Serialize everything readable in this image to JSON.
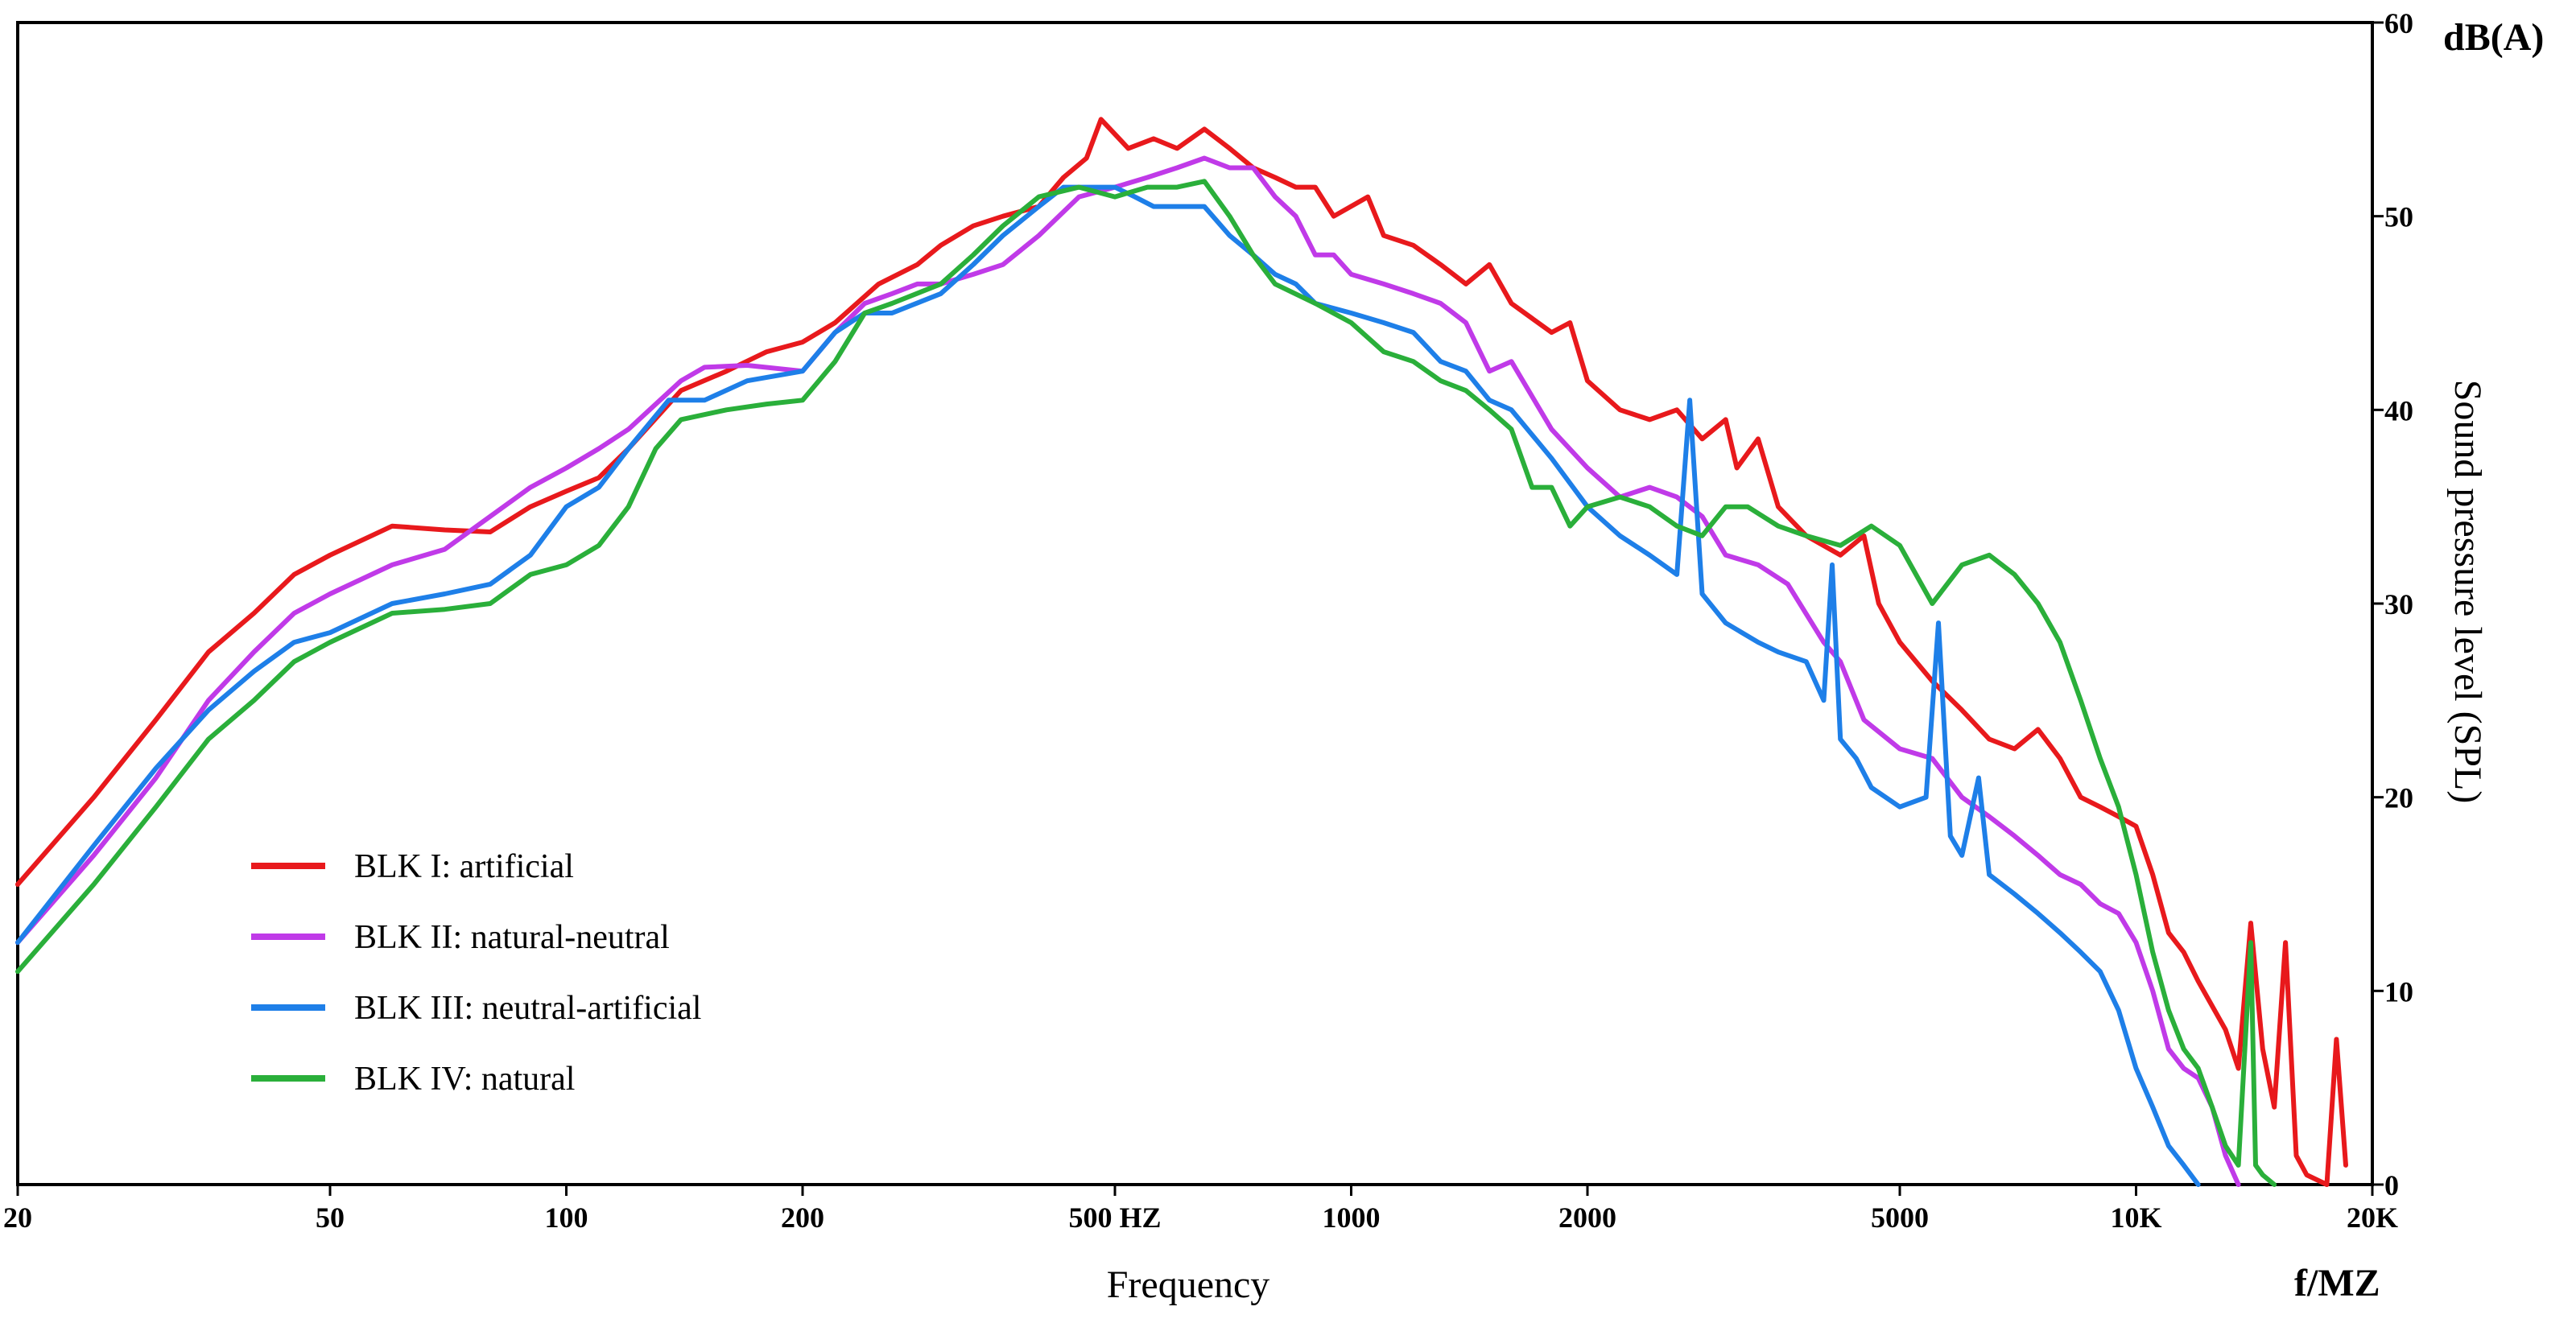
{
  "chart_data": {
    "type": "line",
    "title": "",
    "xlabel": "Frequency",
    "x_unit": "f/MZ",
    "ylabel": "Sound pressure level (SPL)",
    "y_unit": "dB(A)",
    "x_scale": "log",
    "xlim": [
      20,
      20000
    ],
    "ylim": [
      0,
      60
    ],
    "x_ticks": [
      20,
      50,
      100,
      200,
      500,
      1000,
      2000,
      5000,
      10000,
      20000
    ],
    "x_tick_labels": [
      "20",
      "50",
      "100",
      "200",
      "500 HZ",
      "1000",
      "2000",
      "5000",
      "10K",
      "20K"
    ],
    "y_ticks": [
      0,
      10,
      20,
      30,
      40,
      50,
      60
    ],
    "y_tick_labels": [
      "0",
      "10",
      "20",
      "30",
      "40",
      "50",
      "60"
    ],
    "legend_position": "lower-left",
    "series": [
      {
        "name": "BLK I: artificial",
        "color": "#e8191c",
        "points": [
          [
            20,
            15.5
          ],
          [
            25,
            20
          ],
          [
            30,
            24
          ],
          [
            35,
            27.5
          ],
          [
            40,
            29.5
          ],
          [
            45,
            31.5
          ],
          [
            50,
            32.5
          ],
          [
            60,
            34
          ],
          [
            70,
            33.8
          ],
          [
            80,
            33.7
          ],
          [
            90,
            35
          ],
          [
            100,
            35.8
          ],
          [
            110,
            36.5
          ],
          [
            120,
            38
          ],
          [
            140,
            41
          ],
          [
            160,
            42
          ],
          [
            180,
            43
          ],
          [
            200,
            43.5
          ],
          [
            220,
            44.5
          ],
          [
            250,
            46.5
          ],
          [
            280,
            47.5
          ],
          [
            300,
            48.5
          ],
          [
            330,
            49.5
          ],
          [
            360,
            50
          ],
          [
            400,
            50.5
          ],
          [
            430,
            52
          ],
          [
            460,
            53
          ],
          [
            480,
            55
          ],
          [
            520,
            53.5
          ],
          [
            560,
            54
          ],
          [
            600,
            53.5
          ],
          [
            650,
            54.5
          ],
          [
            700,
            53.5
          ],
          [
            750,
            52.5
          ],
          [
            800,
            52
          ],
          [
            850,
            51.5
          ],
          [
            900,
            51.5
          ],
          [
            950,
            50
          ],
          [
            1050,
            51
          ],
          [
            1100,
            49
          ],
          [
            1200,
            48.5
          ],
          [
            1300,
            47.5
          ],
          [
            1400,
            46.5
          ],
          [
            1500,
            47.5
          ],
          [
            1600,
            45.5
          ],
          [
            1800,
            44
          ],
          [
            1900,
            44.5
          ],
          [
            2000,
            41.5
          ],
          [
            2200,
            40
          ],
          [
            2400,
            39.5
          ],
          [
            2600,
            40
          ],
          [
            2800,
            38.5
          ],
          [
            3000,
            39.5
          ],
          [
            3100,
            37
          ],
          [
            3300,
            38.5
          ],
          [
            3500,
            35
          ],
          [
            3800,
            33.5
          ],
          [
            4200,
            32.5
          ],
          [
            4500,
            33.5
          ],
          [
            4700,
            30
          ],
          [
            5000,
            28
          ],
          [
            5500,
            26
          ],
          [
            6000,
            24.5
          ],
          [
            6500,
            23
          ],
          [
            7000,
            22.5
          ],
          [
            7500,
            23.5
          ],
          [
            8000,
            22
          ],
          [
            8500,
            20
          ],
          [
            9000,
            19.5
          ],
          [
            9500,
            19
          ],
          [
            10000,
            18.5
          ],
          [
            10500,
            16
          ],
          [
            11000,
            13
          ],
          [
            11500,
            12
          ],
          [
            12000,
            10.5
          ],
          [
            13000,
            8
          ],
          [
            13500,
            6
          ],
          [
            14000,
            13.5
          ],
          [
            14500,
            7
          ],
          [
            15000,
            4
          ],
          [
            15500,
            12.5
          ],
          [
            16000,
            1.5
          ],
          [
            16500,
            0.5
          ],
          [
            17500,
            0
          ],
          [
            18000,
            7.5
          ],
          [
            18500,
            1
          ]
        ]
      },
      {
        "name": "BLK II: natural-neutral",
        "color": "#c03ae8",
        "points": [
          [
            20,
            12.5
          ],
          [
            25,
            17
          ],
          [
            30,
            21
          ],
          [
            35,
            25
          ],
          [
            40,
            27.5
          ],
          [
            45,
            29.5
          ],
          [
            50,
            30.5
          ],
          [
            60,
            32
          ],
          [
            70,
            32.8
          ],
          [
            80,
            34.5
          ],
          [
            90,
            36
          ],
          [
            100,
            37
          ],
          [
            110,
            38
          ],
          [
            120,
            39
          ],
          [
            140,
            41.5
          ],
          [
            150,
            42.2
          ],
          [
            170,
            42.3
          ],
          [
            200,
            42
          ],
          [
            220,
            44
          ],
          [
            240,
            45.5
          ],
          [
            260,
            46
          ],
          [
            280,
            46.5
          ],
          [
            300,
            46.5
          ],
          [
            330,
            47
          ],
          [
            360,
            47.5
          ],
          [
            400,
            49
          ],
          [
            450,
            51
          ],
          [
            500,
            51.5
          ],
          [
            550,
            52
          ],
          [
            600,
            52.5
          ],
          [
            650,
            53
          ],
          [
            700,
            52.5
          ],
          [
            750,
            52.5
          ],
          [
            800,
            51
          ],
          [
            850,
            50
          ],
          [
            900,
            48
          ],
          [
            950,
            48
          ],
          [
            1000,
            47
          ],
          [
            1100,
            46.5
          ],
          [
            1200,
            46
          ],
          [
            1300,
            45.5
          ],
          [
            1400,
            44.5
          ],
          [
            1500,
            42
          ],
          [
            1600,
            42.5
          ],
          [
            1800,
            39
          ],
          [
            2000,
            37
          ],
          [
            2200,
            35.5
          ],
          [
            2400,
            36
          ],
          [
            2600,
            35.5
          ],
          [
            2800,
            34.5
          ],
          [
            3000,
            32.5
          ],
          [
            3300,
            32
          ],
          [
            3600,
            31
          ],
          [
            4000,
            28
          ],
          [
            4200,
            27
          ],
          [
            4500,
            24
          ],
          [
            5000,
            22.5
          ],
          [
            5500,
            22
          ],
          [
            6000,
            20
          ],
          [
            6500,
            19
          ],
          [
            7000,
            18
          ],
          [
            7500,
            17
          ],
          [
            8000,
            16
          ],
          [
            8500,
            15.5
          ],
          [
            9000,
            14.5
          ],
          [
            9500,
            14
          ],
          [
            10000,
            12.5
          ],
          [
            10500,
            10
          ],
          [
            11000,
            7
          ],
          [
            11500,
            6
          ],
          [
            12000,
            5.5
          ],
          [
            12500,
            4
          ],
          [
            13000,
            1.5
          ],
          [
            13500,
            0
          ]
        ]
      },
      {
        "name": "BLK III: neutral-artificial",
        "color": "#1e7fe8",
        "points": [
          [
            20,
            12.5
          ],
          [
            25,
            17.5
          ],
          [
            30,
            21.5
          ],
          [
            35,
            24.5
          ],
          [
            40,
            26.5
          ],
          [
            45,
            28
          ],
          [
            50,
            28.5
          ],
          [
            60,
            30
          ],
          [
            70,
            30.5
          ],
          [
            80,
            31
          ],
          [
            90,
            32.5
          ],
          [
            100,
            35
          ],
          [
            110,
            36
          ],
          [
            120,
            38
          ],
          [
            135,
            40.5
          ],
          [
            150,
            40.5
          ],
          [
            170,
            41.5
          ],
          [
            200,
            42
          ],
          [
            220,
            44
          ],
          [
            240,
            45
          ],
          [
            260,
            45
          ],
          [
            300,
            46
          ],
          [
            330,
            47.5
          ],
          [
            360,
            49
          ],
          [
            400,
            50.5
          ],
          [
            430,
            51.5
          ],
          [
            470,
            51.5
          ],
          [
            500,
            51.5
          ],
          [
            530,
            51
          ],
          [
            560,
            50.5
          ],
          [
            600,
            50.5
          ],
          [
            650,
            50.5
          ],
          [
            700,
            49
          ],
          [
            750,
            48
          ],
          [
            800,
            47
          ],
          [
            850,
            46.5
          ],
          [
            900,
            45.5
          ],
          [
            1000,
            45
          ],
          [
            1100,
            44.5
          ],
          [
            1200,
            44
          ],
          [
            1300,
            42.5
          ],
          [
            1400,
            42
          ],
          [
            1500,
            40.5
          ],
          [
            1600,
            40
          ],
          [
            1800,
            37.5
          ],
          [
            2000,
            35
          ],
          [
            2200,
            33.5
          ],
          [
            2400,
            32.5
          ],
          [
            2600,
            31.5
          ],
          [
            2700,
            40.5
          ],
          [
            2800,
            30.5
          ],
          [
            3000,
            29
          ],
          [
            3300,
            28
          ],
          [
            3500,
            27.5
          ],
          [
            3800,
            27
          ],
          [
            4000,
            25
          ],
          [
            4100,
            32
          ],
          [
            4200,
            23
          ],
          [
            4400,
            22
          ],
          [
            4600,
            20.5
          ],
          [
            5000,
            19.5
          ],
          [
            5400,
            20
          ],
          [
            5600,
            29
          ],
          [
            5800,
            18
          ],
          [
            6000,
            17
          ],
          [
            6300,
            21
          ],
          [
            6500,
            16
          ],
          [
            7000,
            15
          ],
          [
            7500,
            14
          ],
          [
            8000,
            13
          ],
          [
            8500,
            12
          ],
          [
            9000,
            11
          ],
          [
            9500,
            9
          ],
          [
            10000,
            6
          ],
          [
            10500,
            4
          ],
          [
            11000,
            2
          ],
          [
            11500,
            1
          ],
          [
            12000,
            0
          ]
        ]
      },
      {
        "name": "BLK IV: natural",
        "color": "#2aaf3a",
        "points": [
          [
            20,
            11
          ],
          [
            25,
            15.5
          ],
          [
            30,
            19.5
          ],
          [
            35,
            23
          ],
          [
            40,
            25
          ],
          [
            45,
            27
          ],
          [
            50,
            28
          ],
          [
            60,
            29.5
          ],
          [
            70,
            29.7
          ],
          [
            80,
            30
          ],
          [
            90,
            31.5
          ],
          [
            100,
            32
          ],
          [
            110,
            33
          ],
          [
            120,
            35
          ],
          [
            130,
            38
          ],
          [
            140,
            39.5
          ],
          [
            160,
            40
          ],
          [
            180,
            40.3
          ],
          [
            200,
            40.5
          ],
          [
            220,
            42.5
          ],
          [
            240,
            45
          ],
          [
            260,
            45.5
          ],
          [
            300,
            46.5
          ],
          [
            330,
            48
          ],
          [
            360,
            49.5
          ],
          [
            400,
            51
          ],
          [
            450,
            51.5
          ],
          [
            500,
            51
          ],
          [
            550,
            51.5
          ],
          [
            600,
            51.5
          ],
          [
            650,
            51.8
          ],
          [
            700,
            50
          ],
          [
            750,
            48
          ],
          [
            800,
            46.5
          ],
          [
            900,
            45.5
          ],
          [
            1000,
            44.5
          ],
          [
            1100,
            43
          ],
          [
            1200,
            42.5
          ],
          [
            1300,
            41.5
          ],
          [
            1400,
            41
          ],
          [
            1500,
            40
          ],
          [
            1600,
            39
          ],
          [
            1700,
            36
          ],
          [
            1800,
            36
          ],
          [
            1900,
            34
          ],
          [
            2000,
            35
          ],
          [
            2200,
            35.5
          ],
          [
            2400,
            35
          ],
          [
            2600,
            34
          ],
          [
            2800,
            33.5
          ],
          [
            3000,
            35
          ],
          [
            3200,
            35
          ],
          [
            3500,
            34
          ],
          [
            3800,
            33.5
          ],
          [
            4200,
            33
          ],
          [
            4600,
            34
          ],
          [
            5000,
            33
          ],
          [
            5500,
            30
          ],
          [
            6000,
            32
          ],
          [
            6500,
            32.5
          ],
          [
            7000,
            31.5
          ],
          [
            7500,
            30
          ],
          [
            8000,
            28
          ],
          [
            8500,
            25
          ],
          [
            9000,
            22
          ],
          [
            9500,
            19.5
          ],
          [
            10000,
            16
          ],
          [
            10500,
            12
          ],
          [
            11000,
            9
          ],
          [
            11500,
            7
          ],
          [
            12000,
            6
          ],
          [
            12500,
            4
          ],
          [
            13000,
            2
          ],
          [
            13500,
            1
          ],
          [
            14000,
            12.5
          ],
          [
            14200,
            1
          ],
          [
            14500,
            0.5
          ],
          [
            15000,
            0
          ]
        ]
      }
    ]
  }
}
